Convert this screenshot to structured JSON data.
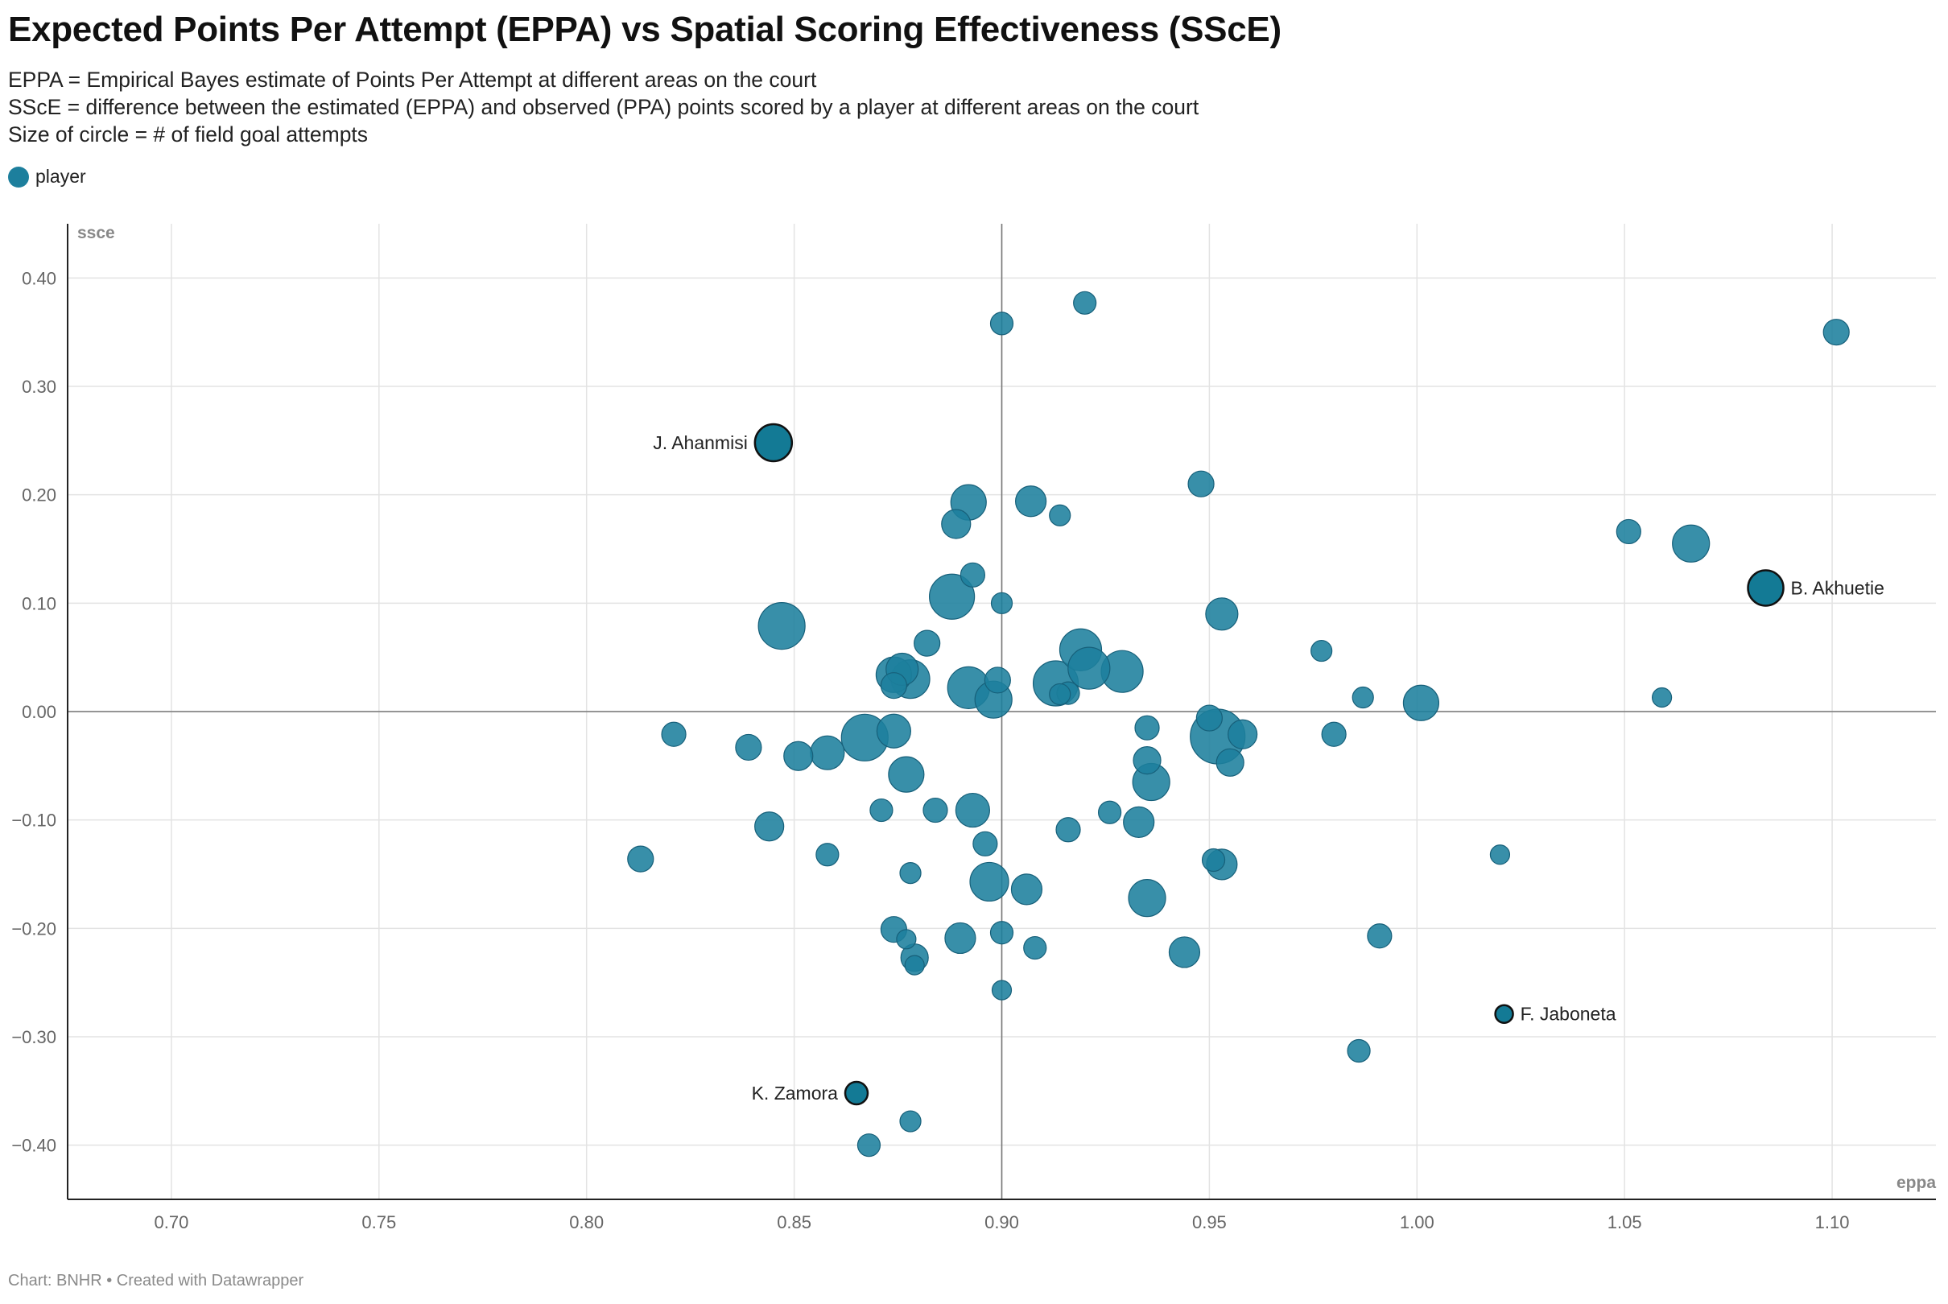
{
  "header": {
    "title": "Expected Points Per Attempt (EPPA) vs Spatial Scoring Effectiveness (SScE)",
    "subtitle_lines": [
      "EPPA = Empirical Bayes estimate of Points Per Attempt at different areas on the court",
      "SScE = difference between the estimated (EPPA) and observed (PPA) points scored by a player at different areas on the court",
      "Size of circle = # of field goal attempts"
    ]
  },
  "legend": {
    "label": "player",
    "color": "#1d7f9d"
  },
  "footer": {
    "text": "Chart: BNHR • Created with Datawrapper"
  },
  "chart_data": {
    "type": "scatter",
    "xlabel": "eppa",
    "ylabel": "ssce",
    "xlim": [
      0.675,
      1.125
    ],
    "ylim": [
      -0.45,
      0.45
    ],
    "x_ticks": [
      0.7,
      0.75,
      0.8,
      0.85,
      0.9,
      0.95,
      1.0,
      1.05,
      1.1
    ],
    "y_ticks": [
      0.4,
      0.3,
      0.2,
      0.1,
      0.0,
      -0.1,
      -0.2,
      -0.3,
      -0.4
    ],
    "reference_lines": {
      "x": 0.9,
      "y": 0.0
    },
    "grid": true,
    "colors": {
      "point": "#1d7f9d",
      "highlight": "#137a95",
      "highlight_stroke": "#111111"
    },
    "series": [
      {
        "name": "player",
        "points": [
          {
            "x": 0.92,
            "y": 0.377,
            "size": 14
          },
          {
            "x": 0.9,
            "y": 0.358,
            "size": 14
          },
          {
            "x": 1.101,
            "y": 0.35,
            "size": 16
          },
          {
            "x": 0.948,
            "y": 0.21,
            "size": 16
          },
          {
            "x": 0.892,
            "y": 0.193,
            "size": 22
          },
          {
            "x": 0.907,
            "y": 0.194,
            "size": 19
          },
          {
            "x": 0.914,
            "y": 0.181,
            "size": 13
          },
          {
            "x": 0.889,
            "y": 0.173,
            "size": 18
          },
          {
            "x": 1.051,
            "y": 0.166,
            "size": 15
          },
          {
            "x": 1.066,
            "y": 0.155,
            "size": 23
          },
          {
            "x": 0.893,
            "y": 0.126,
            "size": 15
          },
          {
            "x": 0.888,
            "y": 0.106,
            "size": 28
          },
          {
            "x": 0.9,
            "y": 0.1,
            "size": 13
          },
          {
            "x": 0.953,
            "y": 0.09,
            "size": 20
          },
          {
            "x": 0.847,
            "y": 0.079,
            "size": 29
          },
          {
            "x": 0.882,
            "y": 0.063,
            "size": 16
          },
          {
            "x": 0.977,
            "y": 0.056,
            "size": 13
          },
          {
            "x": 0.919,
            "y": 0.057,
            "size": 26
          },
          {
            "x": 0.876,
            "y": 0.039,
            "size": 20
          },
          {
            "x": 0.874,
            "y": 0.034,
            "size": 22
          },
          {
            "x": 0.878,
            "y": 0.03,
            "size": 24
          },
          {
            "x": 0.874,
            "y": 0.024,
            "size": 16
          },
          {
            "x": 0.929,
            "y": 0.037,
            "size": 26
          },
          {
            "x": 0.921,
            "y": 0.04,
            "size": 26
          },
          {
            "x": 0.899,
            "y": 0.029,
            "size": 16
          },
          {
            "x": 0.892,
            "y": 0.022,
            "size": 26
          },
          {
            "x": 0.913,
            "y": 0.026,
            "size": 28
          },
          {
            "x": 0.914,
            "y": 0.016,
            "size": 13
          },
          {
            "x": 0.916,
            "y": 0.017,
            "size": 14
          },
          {
            "x": 0.898,
            "y": 0.011,
            "size": 23
          },
          {
            "x": 0.987,
            "y": 0.013,
            "size": 13
          },
          {
            "x": 1.001,
            "y": 0.008,
            "size": 22
          },
          {
            "x": 1.059,
            "y": 0.013,
            "size": 12
          },
          {
            "x": 0.95,
            "y": -0.006,
            "size": 16
          },
          {
            "x": 0.952,
            "y": -0.023,
            "size": 34
          },
          {
            "x": 0.958,
            "y": -0.021,
            "size": 18
          },
          {
            "x": 0.935,
            "y": -0.015,
            "size": 15
          },
          {
            "x": 0.98,
            "y": -0.021,
            "size": 15
          },
          {
            "x": 0.821,
            "y": -0.021,
            "size": 15
          },
          {
            "x": 0.839,
            "y": -0.033,
            "size": 16
          },
          {
            "x": 0.851,
            "y": -0.041,
            "size": 18
          },
          {
            "x": 0.858,
            "y": -0.038,
            "size": 21
          },
          {
            "x": 0.867,
            "y": -0.024,
            "size": 29
          },
          {
            "x": 0.874,
            "y": -0.018,
            "size": 21
          },
          {
            "x": 0.935,
            "y": -0.045,
            "size": 17
          },
          {
            "x": 0.955,
            "y": -0.047,
            "size": 17
          },
          {
            "x": 0.936,
            "y": -0.065,
            "size": 23
          },
          {
            "x": 0.877,
            "y": -0.058,
            "size": 22
          },
          {
            "x": 0.871,
            "y": -0.091,
            "size": 14
          },
          {
            "x": 0.884,
            "y": -0.091,
            "size": 15
          },
          {
            "x": 0.893,
            "y": -0.091,
            "size": 21
          },
          {
            "x": 0.926,
            "y": -0.093,
            "size": 14
          },
          {
            "x": 0.933,
            "y": -0.102,
            "size": 19
          },
          {
            "x": 0.844,
            "y": -0.106,
            "size": 18
          },
          {
            "x": 0.916,
            "y": -0.109,
            "size": 15
          },
          {
            "x": 0.896,
            "y": -0.122,
            "size": 15
          },
          {
            "x": 0.858,
            "y": -0.132,
            "size": 14
          },
          {
            "x": 0.813,
            "y": -0.136,
            "size": 16
          },
          {
            "x": 1.02,
            "y": -0.132,
            "size": 12
          },
          {
            "x": 0.951,
            "y": -0.137,
            "size": 14
          },
          {
            "x": 0.953,
            "y": -0.141,
            "size": 19
          },
          {
            "x": 0.878,
            "y": -0.149,
            "size": 13
          },
          {
            "x": 0.897,
            "y": -0.157,
            "size": 24
          },
          {
            "x": 0.906,
            "y": -0.164,
            "size": 19
          },
          {
            "x": 0.935,
            "y": -0.172,
            "size": 23
          },
          {
            "x": 0.874,
            "y": -0.201,
            "size": 16
          },
          {
            "x": 0.877,
            "y": -0.21,
            "size": 12
          },
          {
            "x": 0.89,
            "y": -0.209,
            "size": 19
          },
          {
            "x": 0.9,
            "y": -0.204,
            "size": 14
          },
          {
            "x": 0.991,
            "y": -0.207,
            "size": 15
          },
          {
            "x": 0.908,
            "y": -0.218,
            "size": 14
          },
          {
            "x": 0.944,
            "y": -0.222,
            "size": 19
          },
          {
            "x": 0.879,
            "y": -0.227,
            "size": 17
          },
          {
            "x": 0.879,
            "y": -0.234,
            "size": 12
          },
          {
            "x": 0.9,
            "y": -0.257,
            "size": 12
          },
          {
            "x": 0.986,
            "y": -0.313,
            "size": 14
          },
          {
            "x": 0.878,
            "y": -0.378,
            "size": 13
          },
          {
            "x": 0.868,
            "y": -0.4,
            "size": 14
          }
        ]
      }
    ],
    "highlights": [
      {
        "label": "J. Ahanmisi",
        "x": 0.845,
        "y": 0.248,
        "size": 23,
        "label_side": "left"
      },
      {
        "label": "B. Akhuetie",
        "x": 1.084,
        "y": 0.114,
        "size": 22,
        "label_side": "right"
      },
      {
        "label": "F. Jaboneta",
        "x": 1.021,
        "y": -0.279,
        "size": 11,
        "label_side": "right"
      },
      {
        "label": "K. Zamora",
        "x": 0.865,
        "y": -0.352,
        "size": 14,
        "label_side": "left"
      }
    ]
  }
}
